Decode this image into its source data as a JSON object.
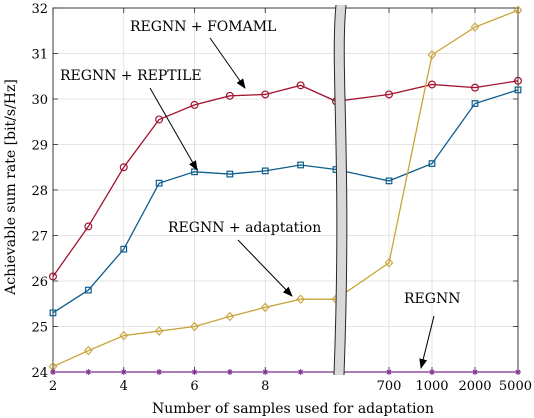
{
  "chart_data": {
    "type": "line",
    "title": "",
    "xlabel": "Number of samples used for adaptation",
    "ylabel": "Achievable sum rate [bit/s/Hz]",
    "ylim": [
      24,
      32
    ],
    "grid": true,
    "x_ticks_left": [
      "2",
      "4",
      "6",
      "8"
    ],
    "x_ticks_right": [
      "700",
      "1000",
      "2000",
      "5000"
    ],
    "y_ticks": [
      "24",
      "25",
      "26",
      "27",
      "28",
      "29",
      "30",
      "31",
      "32"
    ],
    "x_left": [
      2,
      3,
      4,
      5,
      6,
      7,
      8,
      9,
      10
    ],
    "x_right": [
      700,
      1000,
      2000,
      5000
    ],
    "series": [
      {
        "name": "REGNN + FOMAML",
        "color": "#a2142f",
        "marker": "circle",
        "left": [
          26.1,
          27.2,
          28.5,
          29.55,
          29.87,
          30.07,
          30.1,
          30.3,
          29.95
        ],
        "right": [
          30.1,
          30.32,
          30.25,
          30.4
        ]
      },
      {
        "name": "REGNN + REPTILE",
        "color": "#0e5e8e",
        "marker": "square",
        "left": [
          25.3,
          25.8,
          26.7,
          28.15,
          28.4,
          28.35,
          28.42,
          28.55,
          28.45
        ],
        "right": [
          28.2,
          28.58,
          29.9,
          30.2
        ]
      },
      {
        "name": "REGNN + adaptation",
        "color": "#c9a43a",
        "marker": "diamond",
        "left": [
          24.12,
          24.47,
          24.8,
          24.9,
          25.0,
          25.22,
          25.42,
          25.6,
          25.6
        ],
        "right": [
          26.4,
          30.97,
          31.58,
          31.95
        ]
      },
      {
        "name": "REGNN",
        "color": "#7e2f8e",
        "marker": "star",
        "left": [
          24,
          24,
          24,
          24,
          24,
          24,
          24,
          24,
          24
        ],
        "right": [
          24,
          24,
          24,
          24
        ]
      }
    ],
    "annotations": [
      {
        "text": "REGNN + FOMAML",
        "points_to": "REGNN + FOMAML"
      },
      {
        "text": "REGNN + REPTILE",
        "points_to": "REGNN + REPTILE"
      },
      {
        "text": "REGNN + adaptation",
        "points_to": "REGNN + adaptation"
      },
      {
        "text": "REGNN",
        "points_to": "REGNN"
      }
    ]
  }
}
